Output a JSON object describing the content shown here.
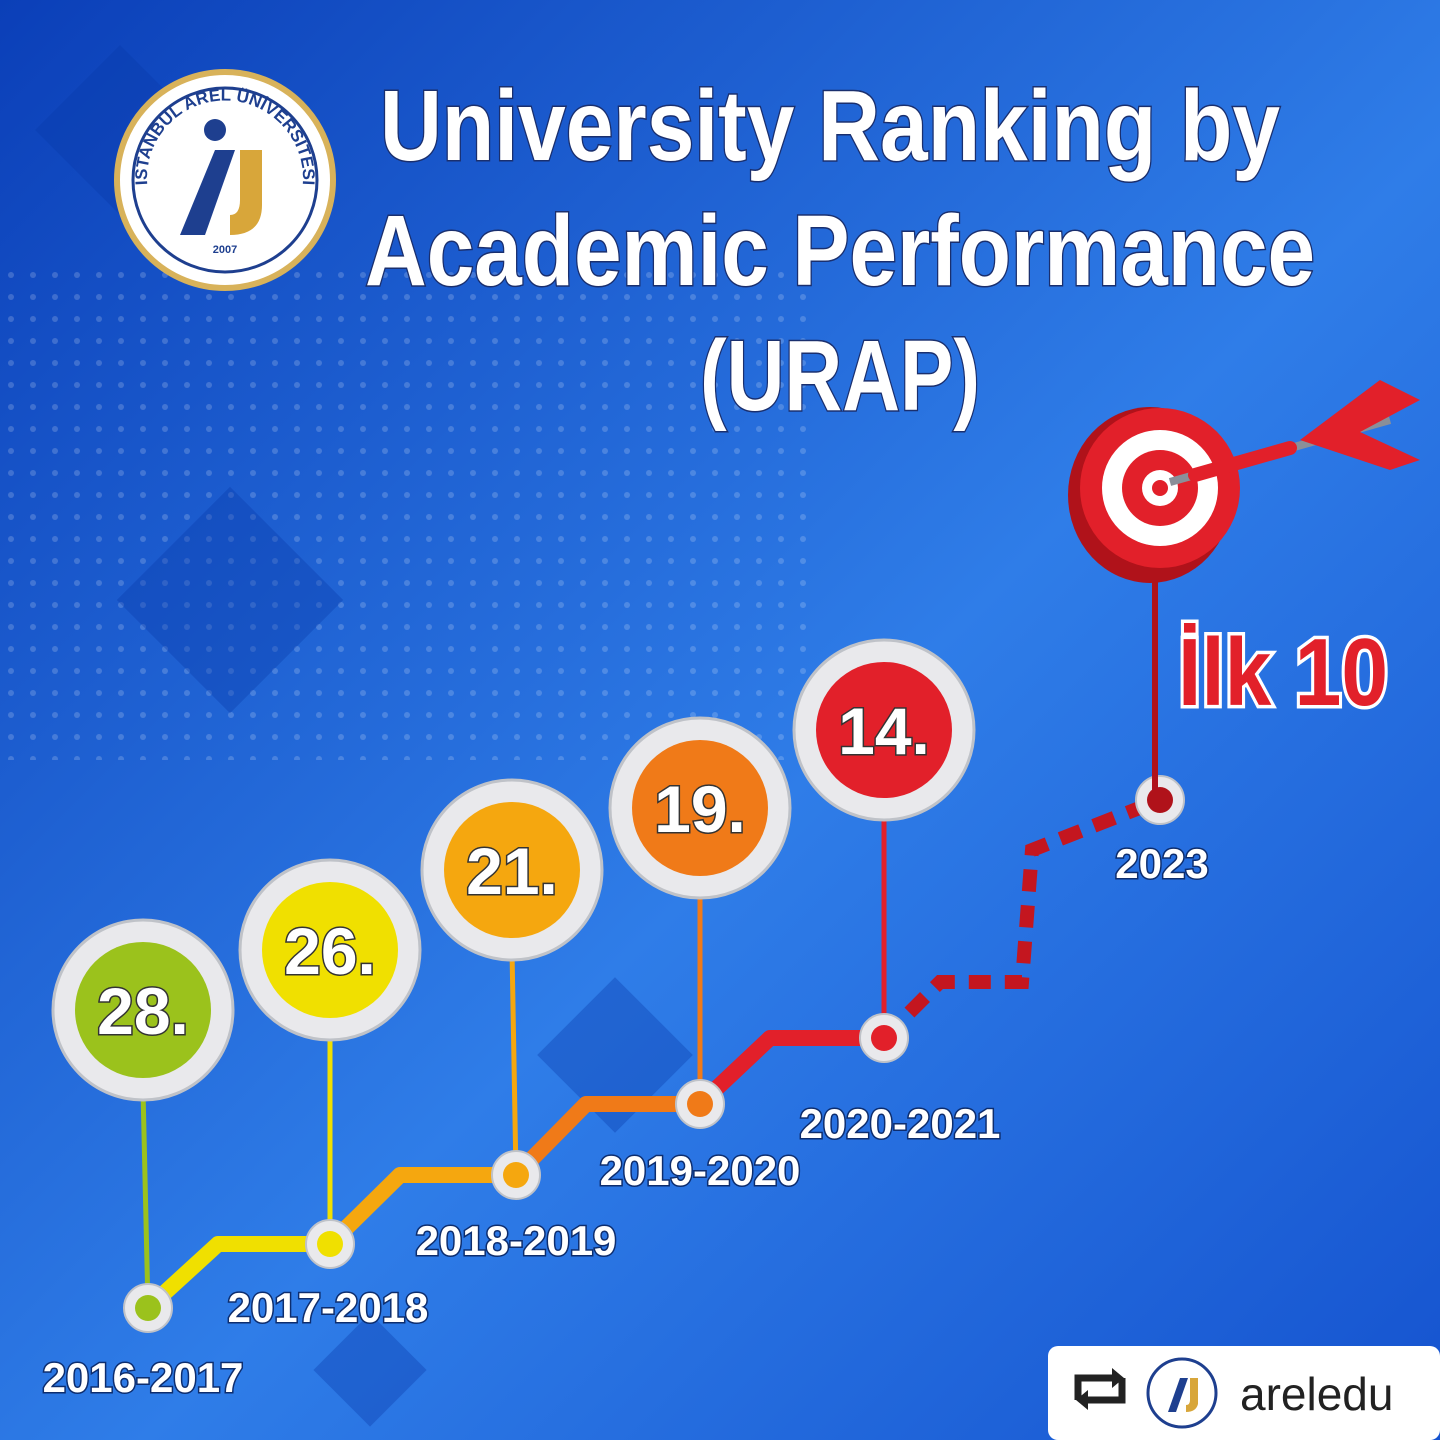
{
  "header": {
    "title_lines": [
      "University Ranking by",
      "Academic Performance",
      "(URAP)"
    ]
  },
  "logo": {
    "name": "İSTANBUL AREL ÜNİVERSİTESİ",
    "year": "2007"
  },
  "milestones": [
    {
      "period": "2016-2017",
      "rank": "28."
    },
    {
      "period": "2017-2018",
      "rank": "26."
    },
    {
      "period": "2018-2019",
      "rank": "21."
    },
    {
      "period": "2019-2020",
      "rank": "19."
    },
    {
      "period": "2020-2021",
      "rank": "14."
    },
    {
      "period": "2023",
      "goal": "İlk 10"
    }
  ],
  "repost": {
    "handle": "areledu"
  }
}
